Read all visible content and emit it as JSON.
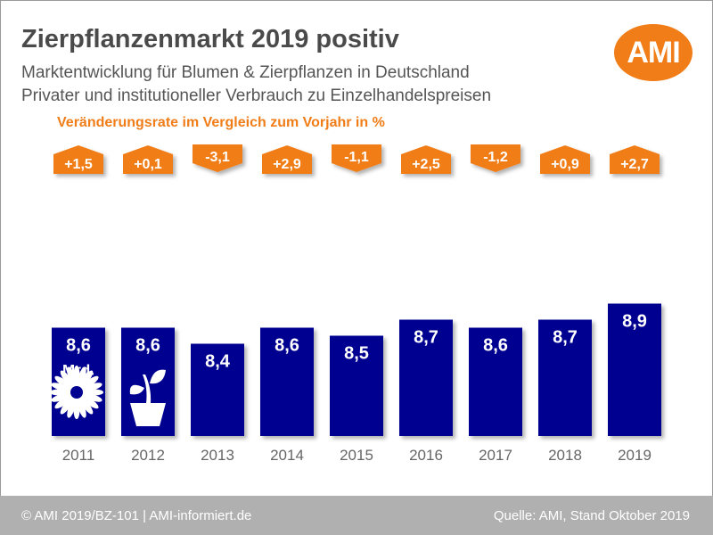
{
  "header": {
    "title": "Zierpflanzenmarkt 2019 positiv",
    "subtitle_line1": "Marktentwicklung für Blumen & Zierpflanzen in Deutschland",
    "subtitle_line2": "Privater und institutioneller Verbrauch zu Einzelhandelspreisen",
    "rate_label": "Veränderungsrate im Vergleich zum Vorjahr in %",
    "logo": "AMI"
  },
  "footer": {
    "left": "© AMI 2019/BZ-101 | AMI-informiert.de",
    "right": "Quelle: AMI, Stand Oktober 2019"
  },
  "colors": {
    "bar": "#000090",
    "accent": "#f07d18",
    "footer_bg": "#b0b0b0"
  },
  "icons": [
    "flower-icon",
    "potted-plant-icon"
  ],
  "chart_data": {
    "type": "bar",
    "title": "Zierpflanzenmarkt 2019 positiv",
    "xlabel": "",
    "ylabel": "Mrd. EUR",
    "unit_label_line1": "Mrd.",
    "unit_label_line2": "EUR",
    "categories": [
      "2011",
      "2012",
      "2013",
      "2014",
      "2015",
      "2016",
      "2017",
      "2018",
      "2019"
    ],
    "values": [
      8.6,
      8.6,
      8.4,
      8.6,
      8.5,
      8.7,
      8.6,
      8.7,
      8.9
    ],
    "value_labels": [
      "8,6",
      "8,6",
      "8,4",
      "8,6",
      "8,5",
      "8,7",
      "8,6",
      "8,7",
      "8,9"
    ],
    "change_pct": [
      1.5,
      0.1,
      -3.1,
      2.9,
      -1.1,
      2.5,
      -1.2,
      0.9,
      2.7
    ],
    "change_labels": [
      "+1,5",
      "+0,1",
      "-3,1",
      "+2,9",
      "-1,1",
      "+2,5",
      "-1,2",
      "+0,9",
      "+2,7"
    ],
    "grid": false,
    "legend": "none"
  }
}
